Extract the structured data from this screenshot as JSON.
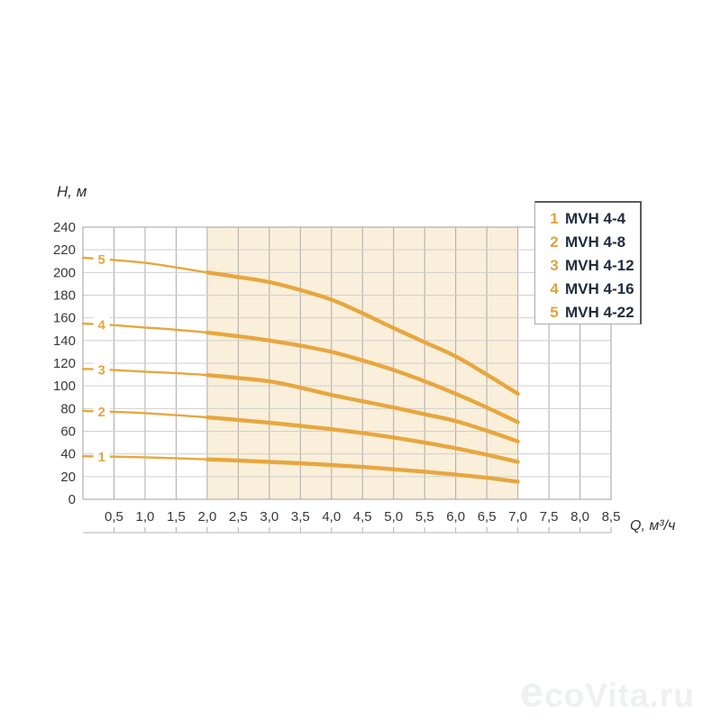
{
  "axis_titles": {
    "y": "H, м",
    "x": "Q, м³/ч"
  },
  "legend": {
    "items": [
      {
        "num": "1",
        "label": "MVH 4-4"
      },
      {
        "num": "2",
        "label": "MVH 4-8"
      },
      {
        "num": "3",
        "label": "MVH 4-12"
      },
      {
        "num": "4",
        "label": "MVH 4-16"
      },
      {
        "num": "5",
        "label": "MVH 4-22"
      }
    ]
  },
  "watermark": {
    "text": "ecoVita.ru"
  },
  "colors": {
    "curve": "#E8A63E",
    "curve_label": "#E8A63E",
    "band": "#FAEFDA",
    "grid_vertical": "#ABABAB",
    "grid_horizontal": "#CFCFCF",
    "plot_border": "#9F9F9F",
    "axis_text": "#383838",
    "ruler": "#B0B0B0"
  },
  "chart_data": {
    "type": "line",
    "title": "",
    "xlabel": "Q, м³/ч",
    "ylabel": "H, м",
    "xlim": [
      0,
      8.5
    ],
    "ylim": [
      0,
      240
    ],
    "x_tick_step": 0.5,
    "y_tick_step": 20,
    "x_tick_labels": [
      "0,5",
      "1,0",
      "1,5",
      "2,0",
      "2,5",
      "3,0",
      "3,5",
      "4,0",
      "4,5",
      "5,0",
      "5,5",
      "6,0",
      "6,5",
      "7,0",
      "7,5",
      "8,0",
      "8,5"
    ],
    "y_tick_labels": [
      "0",
      "20",
      "40",
      "60",
      "80",
      "100",
      "120",
      "140",
      "160",
      "180",
      "200",
      "220",
      "240"
    ],
    "grid": true,
    "legend_position": "top-right",
    "working_range": [
      2.0,
      7.0
    ],
    "curve_label_q": 0.3,
    "series": [
      {
        "name": "MVH 4-4",
        "curve_number": "1",
        "points": [
          [
            0,
            38
          ],
          [
            0.5,
            37.6
          ],
          [
            1,
            37
          ],
          [
            1.5,
            36.2
          ],
          [
            2,
            35.2
          ],
          [
            2.5,
            34.2
          ],
          [
            3,
            33
          ],
          [
            3.5,
            31.7
          ],
          [
            4,
            30.2
          ],
          [
            4.5,
            28.5
          ],
          [
            5,
            26.5
          ],
          [
            5.5,
            24.3
          ],
          [
            6,
            21.8
          ],
          [
            6.5,
            19
          ],
          [
            7,
            15.5
          ]
        ]
      },
      {
        "name": "MVH 4-8",
        "curve_number": "2",
        "points": [
          [
            0,
            78
          ],
          [
            0.5,
            77.2
          ],
          [
            1,
            76
          ],
          [
            1.5,
            74.2
          ],
          [
            2,
            72.2
          ],
          [
            2.5,
            70
          ],
          [
            3,
            67.5
          ],
          [
            3.5,
            64.8
          ],
          [
            4,
            61.8
          ],
          [
            4.5,
            58.4
          ],
          [
            5,
            54.5
          ],
          [
            5.5,
            50
          ],
          [
            6,
            45
          ],
          [
            6.5,
            39.3
          ],
          [
            7,
            33
          ]
        ]
      },
      {
        "name": "MVH 4-12",
        "curve_number": "3",
        "points": [
          [
            0,
            115
          ],
          [
            0.5,
            114
          ],
          [
            1,
            112.5
          ],
          [
            1.5,
            111.2
          ],
          [
            2,
            109.5
          ],
          [
            2.5,
            107
          ],
          [
            3,
            104
          ],
          [
            3.5,
            98.5
          ],
          [
            4,
            92
          ],
          [
            4.5,
            86.5
          ],
          [
            5,
            81
          ],
          [
            5.5,
            75
          ],
          [
            6,
            69
          ],
          [
            6.5,
            60.5
          ],
          [
            7,
            51
          ]
        ]
      },
      {
        "name": "MVH 4-16",
        "curve_number": "4",
        "points": [
          [
            0,
            155
          ],
          [
            0.5,
            153.5
          ],
          [
            1,
            151.5
          ],
          [
            1.5,
            149.5
          ],
          [
            2,
            147
          ],
          [
            2.5,
            143.8
          ],
          [
            3,
            140
          ],
          [
            3.5,
            135.5
          ],
          [
            4,
            130
          ],
          [
            4.5,
            122.5
          ],
          [
            5,
            114
          ],
          [
            5.5,
            104
          ],
          [
            6,
            93
          ],
          [
            6.5,
            81
          ],
          [
            7,
            68
          ]
        ]
      },
      {
        "name": "MVH 4-22",
        "curve_number": "5",
        "points": [
          [
            0,
            213
          ],
          [
            0.5,
            211
          ],
          [
            1,
            208.5
          ],
          [
            1.5,
            204.5
          ],
          [
            2,
            200
          ],
          [
            2.5,
            196
          ],
          [
            3,
            191.5
          ],
          [
            3.5,
            184.5
          ],
          [
            4,
            176
          ],
          [
            4.5,
            164
          ],
          [
            5,
            151
          ],
          [
            5.5,
            138.5
          ],
          [
            6,
            126
          ],
          [
            6.5,
            110
          ],
          [
            7,
            93
          ]
        ]
      }
    ]
  }
}
